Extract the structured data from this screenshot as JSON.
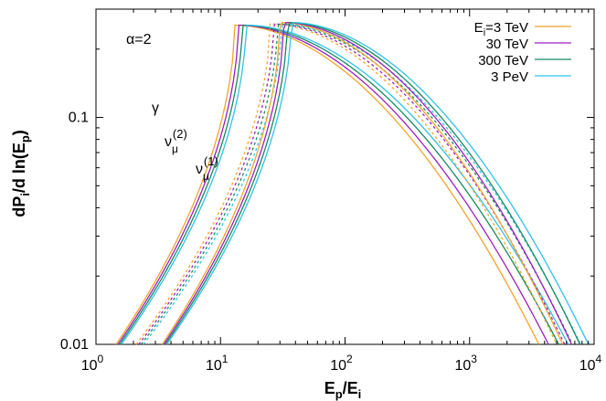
{
  "chart_data": {
    "type": "line",
    "xlabel": "E_p/E_i",
    "ylabel": "dP_i/d ln(E_p)",
    "xscale": "log",
    "yscale": "log",
    "xlim": [
      1,
      10000
    ],
    "ylim": [
      0.01,
      0.3
    ],
    "x_ticks": [
      {
        "value": 1,
        "label": "10",
        "exp": "0"
      },
      {
        "value": 10,
        "label": "10",
        "exp": "1"
      },
      {
        "value": 100,
        "label": "10",
        "exp": "2"
      },
      {
        "value": 1000,
        "label": "10",
        "exp": "3"
      },
      {
        "value": 10000,
        "label": "10",
        "exp": "4"
      }
    ],
    "y_ticks": [
      {
        "value": 0.01,
        "label": "0.01"
      },
      {
        "value": 0.1,
        "label": "0.1"
      }
    ],
    "annotations": [
      {
        "text": "α=2"
      },
      {
        "text": "γ"
      },
      {
        "text": "ν",
        "sub": "μ",
        "sup": "(2)"
      },
      {
        "text": "ν",
        "sub": "μ",
        "sup": "(1)"
      }
    ],
    "legend_position": "top-right",
    "grid": false,
    "series": [
      {
        "name": "E_i=3 TeV",
        "legend_main": "E",
        "legend_sub": "i",
        "legend_rest": "=3 TeV",
        "color": "#f2a52c"
      },
      {
        "name": "30 TeV",
        "legend_main": "30 TeV",
        "color": "#9b1fbf"
      },
      {
        "name": "300 TeV",
        "legend_main": "300 TeV",
        "color": "#158a5e"
      },
      {
        "name": "3 PeV",
        "legend_main": "3 PeV",
        "color": "#2fc1e8"
      }
    ],
    "curves": [
      {
        "particle": "γ",
        "peak_x": 13,
        "peak_y": 0.255,
        "style": "solid",
        "x_start_by_series": [
          1.45,
          1.5,
          1.55,
          1.6
        ],
        "x_end_by_series": [
          3600,
          4300,
          5200,
          6200
        ]
      },
      {
        "particle": "ν_μ(2)",
        "peak_x": 25,
        "peak_y": 0.258,
        "style": "dotted",
        "x_start_by_series": [
          2.1,
          2.2,
          2.3,
          2.4
        ],
        "x_end_by_series": [
          5000,
          5800,
          6700,
          7800
        ]
      },
      {
        "particle": "ν_μ(1)",
        "peak_x": 30,
        "peak_y": 0.262,
        "style": "solid",
        "x_start_by_series": [
          3.4,
          3.5,
          3.6,
          3.7
        ],
        "x_end_by_series": [
          5600,
          6600,
          7700,
          9000
        ]
      }
    ]
  }
}
